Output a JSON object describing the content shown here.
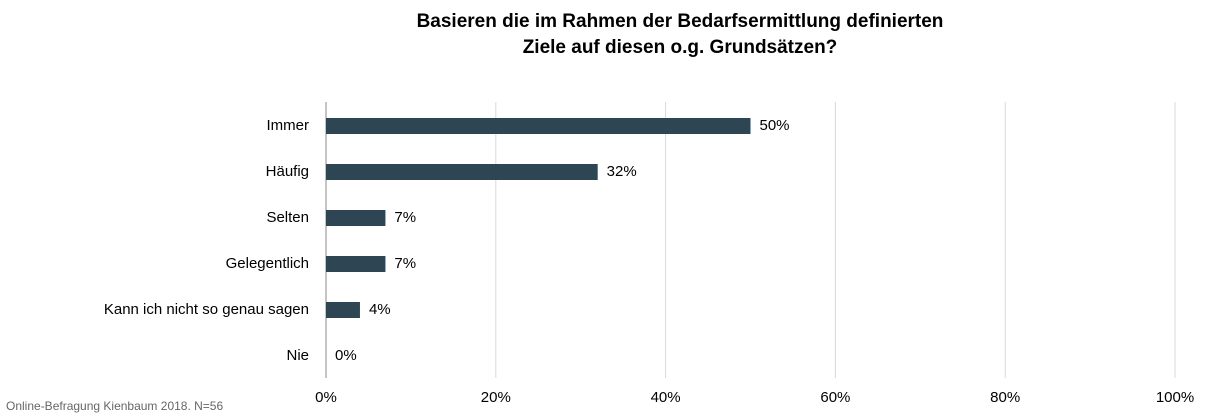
{
  "chart_data": {
    "type": "barh",
    "title": [
      "Basieren die im Rahmen der Bedarfsermittlung definierten",
      "Ziele auf diesen o.g. Grundsätzen?"
    ],
    "categories": [
      "Immer",
      "Häufig",
      "Selten",
      "Gelegentlich",
      "Kann ich nicht so genau sagen",
      "Nie"
    ],
    "values": [
      50,
      32,
      7,
      7,
      4,
      0
    ],
    "value_labels": [
      "50%",
      "32%",
      "7%",
      "7%",
      "4%",
      "0%"
    ],
    "color": "#2e4553",
    "xlim": [
      0,
      100
    ],
    "xticks": [
      {
        "value": 0,
        "label": "0%"
      },
      {
        "value": 20,
        "label": "20%"
      },
      {
        "value": 40,
        "label": "40%"
      },
      {
        "value": 60,
        "label": "60%"
      },
      {
        "value": 80,
        "label": "80%"
      },
      {
        "value": 100,
        "label": "100%"
      }
    ],
    "grid": true,
    "source": "Online-Befragung Kienbaum 2018. N=56"
  }
}
